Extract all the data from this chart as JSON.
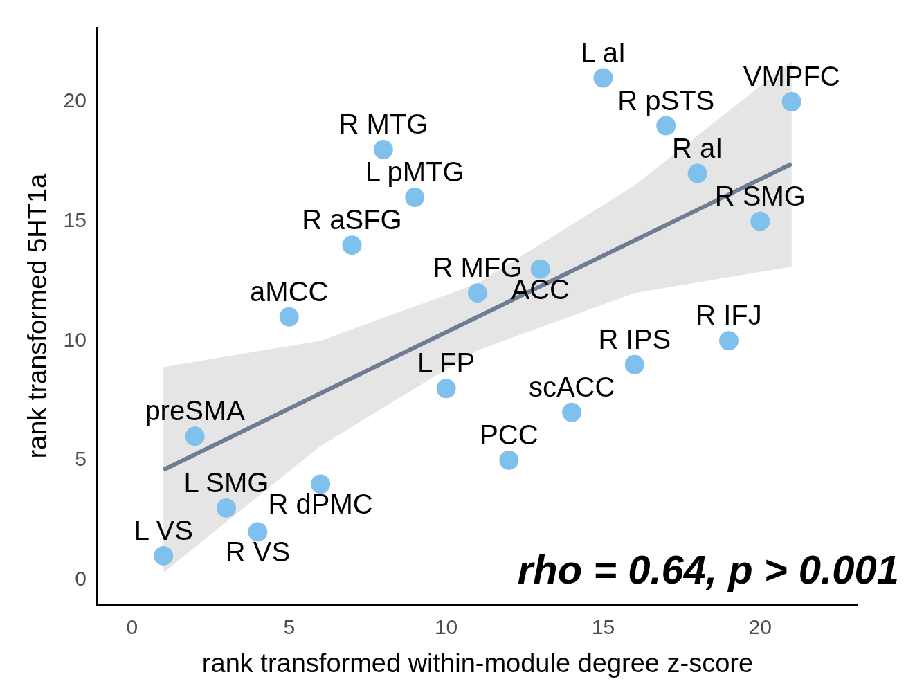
{
  "chart_data": {
    "type": "scatter",
    "xlabel": "rank transformed within-module degree z-score",
    "ylabel": "rank transformed 5HT1a",
    "xlim": [
      -1.1,
      23.1
    ],
    "ylim": [
      -1.04,
      23.1
    ],
    "xticks": [
      0,
      5,
      10,
      15,
      20
    ],
    "yticks": [
      0,
      5,
      10,
      15,
      20
    ],
    "grid": false,
    "legend": false,
    "marker": "circle",
    "series": [
      {
        "type": "line",
        "marker": "none",
        "color": "#6e7d91",
        "x": [
          1,
          6,
          11,
          16,
          21
        ],
        "values": [
          4.6,
          7.8,
          11.0,
          14.2,
          17.4
        ],
        "lower": [
          0.3,
          5.6,
          9.6,
          12.0,
          13.1
        ],
        "upper": [
          8.9,
          10.0,
          12.4,
          16.5,
          21.7
        ]
      },
      {
        "color": "#80c0ec",
        "x": [
          1,
          2,
          3,
          4,
          5,
          6,
          7,
          8,
          9,
          10,
          11,
          12,
          13,
          14,
          15,
          16,
          17,
          18,
          19,
          20,
          21
        ],
        "values": [
          1,
          6,
          3,
          2,
          11,
          4,
          14,
          18,
          16,
          8,
          12,
          5,
          13,
          7,
          21,
          9,
          19,
          17,
          10,
          15,
          20
        ]
      }
    ],
    "annotations": [
      {
        "text": "L VS",
        "x": 1,
        "y": 1
      },
      {
        "text": "preSMA",
        "x": 2,
        "y": 6
      },
      {
        "text": "L SMG",
        "x": 3,
        "y": 3
      },
      {
        "text": "R VS",
        "x": 4,
        "y": 2
      },
      {
        "text": "aMCC",
        "x": 5,
        "y": 11
      },
      {
        "text": "R dPMC",
        "x": 6,
        "y": 4
      },
      {
        "text": "R aSFG",
        "x": 7,
        "y": 14
      },
      {
        "text": "R MTG",
        "x": 8,
        "y": 18
      },
      {
        "text": "L pMTG",
        "x": 9,
        "y": 16
      },
      {
        "text": "L FP",
        "x": 10,
        "y": 8
      },
      {
        "text": "R MFG",
        "x": 11,
        "y": 12
      },
      {
        "text": "PCC",
        "x": 12,
        "y": 5
      },
      {
        "text": "ACC",
        "x": 13,
        "y": 13
      },
      {
        "text": "scACC",
        "x": 14,
        "y": 7
      },
      {
        "text": "L aI",
        "x": 15,
        "y": 21
      },
      {
        "text": "R IPS",
        "x": 16,
        "y": 9
      },
      {
        "text": "R pSTS",
        "x": 17,
        "y": 19
      },
      {
        "text": "R aI",
        "x": 18,
        "y": 17
      },
      {
        "text": "R IFJ",
        "x": 19,
        "y": 10
      },
      {
        "text": "R SMG",
        "x": 20,
        "y": 15
      },
      {
        "text": "VMPFC",
        "x": 21,
        "y": 20
      },
      "rho = 0.64, p > 0.001"
    ]
  }
}
